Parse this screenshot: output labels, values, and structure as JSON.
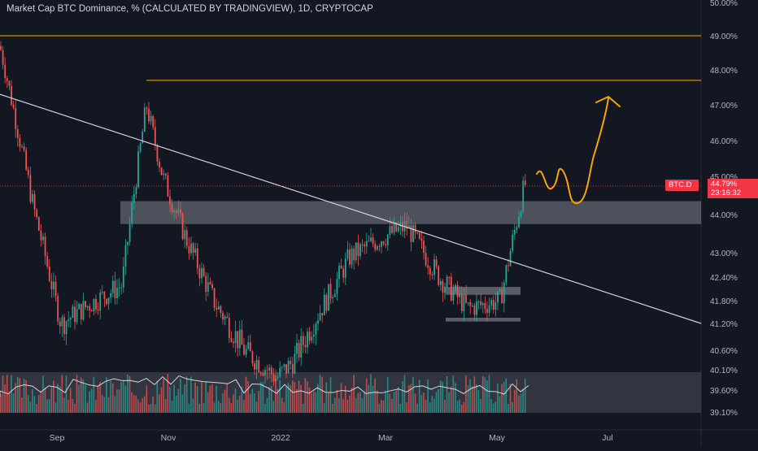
{
  "chart_data": {
    "type": "candlestick",
    "title": "Market Cap BTC Dominance, % (CALCULATED BY TRADINGVIEW), 1D, CRYPTOCAP",
    "x_labels": [
      "Sep",
      "Nov",
      "2022",
      "Mar",
      "May",
      "Jul"
    ],
    "y_ticks": [
      "50.00%",
      "49.00%",
      "48.00%",
      "47.00%",
      "46.00%",
      "45.00%",
      "44.00%",
      "43.00%",
      "42.40%",
      "41.80%",
      "41.20%",
      "40.60%",
      "40.10%",
      "39.60%",
      "39.10%"
    ],
    "ylim": [
      39.0,
      50.0
    ],
    "series": [
      {
        "kind": "candles",
        "approx_close_path": [
          {
            "x": "Aug",
            "y": 48.7
          },
          {
            "x": "Aug",
            "y": 46.5
          },
          {
            "x": "Aug",
            "y": 44.3
          },
          {
            "x": "Sep",
            "y": 41.2
          },
          {
            "x": "Sep",
            "y": 41.7
          },
          {
            "x": "Oct",
            "y": 42.2
          },
          {
            "x": "Oct",
            "y": 47.0
          },
          {
            "x": "Oct",
            "y": 45.0
          },
          {
            "x": "Nov",
            "y": 43.3
          },
          {
            "x": "Nov",
            "y": 41.7
          },
          {
            "x": "Dec",
            "y": 40.6
          },
          {
            "x": "Dec",
            "y": 39.9
          },
          {
            "x": "2022",
            "y": 40.3
          },
          {
            "x": "Jan",
            "y": 41.4
          },
          {
            "x": "Feb",
            "y": 42.9
          },
          {
            "x": "Mar",
            "y": 43.4
          },
          {
            "x": "Mar",
            "y": 43.7
          },
          {
            "x": "Apr",
            "y": 42.4
          },
          {
            "x": "Apr",
            "y": 41.6
          },
          {
            "x": "May",
            "y": 41.8
          },
          {
            "x": "May",
            "y": 44.79
          }
        ]
      }
    ],
    "annotations": {
      "horizontal_lines": [
        49.0,
        47.7
      ],
      "trendline": {
        "from": {
          "x": "Aug",
          "y": 47.3
        },
        "to": {
          "x": "Jul",
          "y": 41.2
        }
      },
      "zones": [
        {
          "from": 43.75,
          "to": 44.35
        },
        {
          "from": 41.95,
          "to": 42.15
        },
        {
          "from": 41.25,
          "to": 41.35
        }
      ],
      "projection_arrow_target": 47.1
    },
    "current_price": {
      "symbol": "BTC.D",
      "value": "44.79%",
      "countdown": "23:16:32"
    },
    "grid": false,
    "colors": {
      "up": "#26a69a",
      "down": "#ef5350",
      "line": "#f7a600",
      "trend": "#d1d4dc",
      "zone": "#9598a1",
      "badge": "#f23645"
    }
  }
}
